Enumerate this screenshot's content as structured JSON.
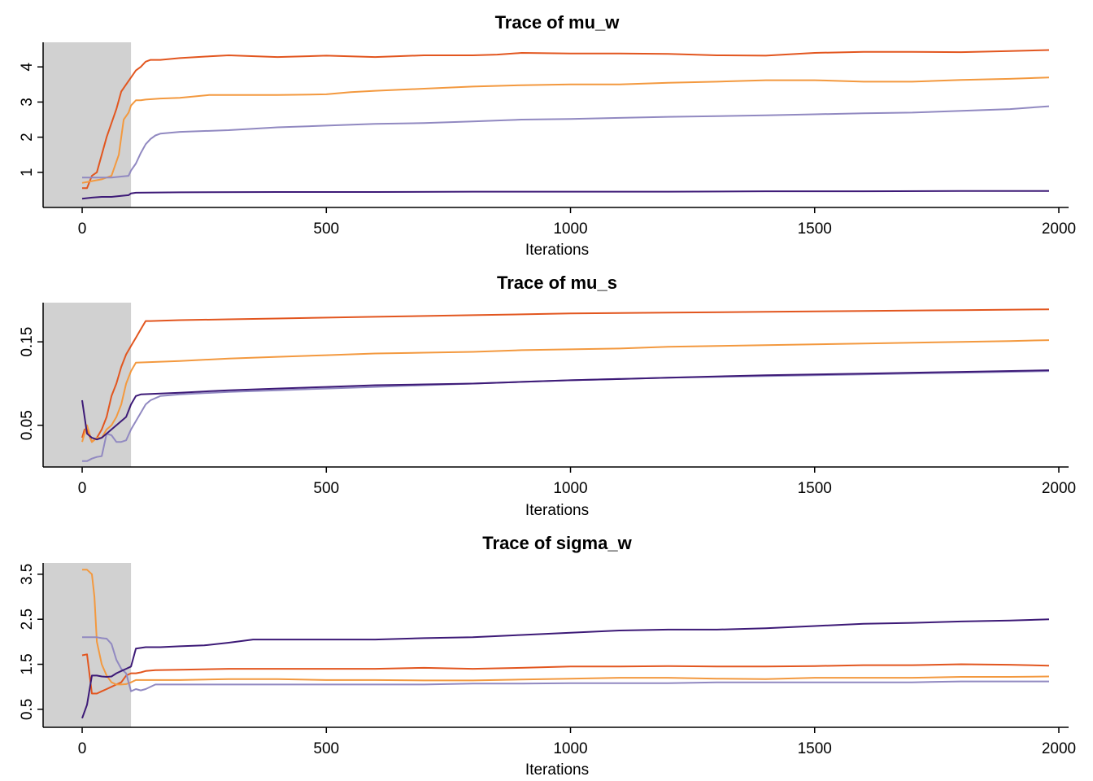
{
  "colors": {
    "chain1": "#e2561f",
    "chain2": "#f3993f",
    "chain3": "#9189c1",
    "chain4": "#3d1a77",
    "burnin": "#d1d1d1"
  },
  "chart_data": [
    {
      "type": "line",
      "title": "Trace of  mu_w",
      "xlabel": "Iterations",
      "ylabel": "",
      "xlim": [
        -80,
        2020
      ],
      "ylim": [
        0,
        4.7
      ],
      "xticks": [
        0,
        500,
        1000,
        1500,
        2000
      ],
      "yticks": [
        1,
        2,
        3,
        4
      ],
      "xtick_labels": [
        "0",
        "500",
        "1000",
        "1500",
        "2000"
      ],
      "ytick_labels": [
        "1",
        "2",
        "3",
        "4"
      ],
      "burnin": [
        -80,
        100
      ],
      "series": [
        {
          "color": "chain1",
          "x": [
            0,
            10,
            20,
            30,
            40,
            50,
            60,
            70,
            80,
            90,
            100,
            110,
            120,
            130,
            140,
            160,
            200,
            260,
            300,
            400,
            500,
            600,
            700,
            800,
            850,
            900,
            1000,
            1100,
            1200,
            1300,
            1400,
            1500,
            1600,
            1700,
            1800,
            1900,
            1980
          ],
          "values": [
            0.55,
            0.55,
            0.9,
            1.0,
            1.5,
            2.0,
            2.4,
            2.8,
            3.3,
            3.5,
            3.7,
            3.9,
            4.0,
            4.15,
            4.2,
            4.2,
            4.25,
            4.3,
            4.33,
            4.28,
            4.32,
            4.28,
            4.33,
            4.33,
            4.35,
            4.4,
            4.38,
            4.38,
            4.37,
            4.33,
            4.32,
            4.4,
            4.43,
            4.43,
            4.42,
            4.45,
            4.48
          ]
        },
        {
          "color": "chain2",
          "x": [
            0,
            20,
            40,
            60,
            75,
            85,
            95,
            100,
            110,
            120,
            130,
            160,
            200,
            260,
            300,
            400,
            500,
            550,
            600,
            700,
            800,
            900,
            1000,
            1100,
            1200,
            1300,
            1400,
            1500,
            1600,
            1700,
            1800,
            1900,
            1980
          ],
          "values": [
            0.7,
            0.75,
            0.8,
            0.9,
            1.5,
            2.5,
            2.7,
            2.9,
            3.05,
            3.05,
            3.07,
            3.1,
            3.12,
            3.2,
            3.2,
            3.2,
            3.22,
            3.28,
            3.32,
            3.38,
            3.44,
            3.48,
            3.5,
            3.5,
            3.55,
            3.58,
            3.62,
            3.62,
            3.58,
            3.58,
            3.63,
            3.66,
            3.7
          ]
        },
        {
          "color": "chain3",
          "x": [
            0,
            20,
            40,
            60,
            80,
            95,
            100,
            110,
            120,
            130,
            140,
            150,
            160,
            200,
            300,
            400,
            500,
            600,
            700,
            800,
            900,
            1000,
            1100,
            1200,
            1300,
            1400,
            1500,
            1600,
            1700,
            1800,
            1900,
            1980
          ],
          "values": [
            0.85,
            0.85,
            0.85,
            0.85,
            0.88,
            0.9,
            1.05,
            1.25,
            1.55,
            1.8,
            1.95,
            2.05,
            2.1,
            2.15,
            2.2,
            2.28,
            2.33,
            2.38,
            2.4,
            2.45,
            2.5,
            2.52,
            2.55,
            2.58,
            2.6,
            2.62,
            2.65,
            2.68,
            2.7,
            2.75,
            2.8,
            2.88
          ]
        },
        {
          "color": "chain4",
          "x": [
            0,
            20,
            40,
            60,
            80,
            95,
            100,
            110,
            200,
            400,
            600,
            800,
            1000,
            1200,
            1400,
            1600,
            1800,
            1980
          ],
          "values": [
            0.25,
            0.28,
            0.3,
            0.3,
            0.33,
            0.35,
            0.4,
            0.42,
            0.43,
            0.44,
            0.44,
            0.45,
            0.45,
            0.45,
            0.46,
            0.46,
            0.47,
            0.47
          ]
        }
      ]
    },
    {
      "type": "line",
      "title": "Trace of  mu_s",
      "xlabel": "Iterations",
      "ylabel": "",
      "xlim": [
        -80,
        2020
      ],
      "ylim": [
        0,
        0.197
      ],
      "xticks": [
        0,
        500,
        1000,
        1500,
        2000
      ],
      "yticks": [
        0.05,
        0.15
      ],
      "xtick_labels": [
        "0",
        "500",
        "1000",
        "1500",
        "2000"
      ],
      "ytick_labels": [
        "0.05",
        "0.15"
      ],
      "burnin": [
        -80,
        100
      ],
      "series": [
        {
          "color": "chain1",
          "x": [
            0,
            5,
            10,
            20,
            30,
            40,
            50,
            60,
            70,
            80,
            90,
            100,
            110,
            120,
            130,
            140,
            200,
            300,
            400,
            600,
            800,
            1000,
            1200,
            1400,
            1600,
            1800,
            1980
          ],
          "values": [
            0.035,
            0.045,
            0.045,
            0.03,
            0.035,
            0.045,
            0.06,
            0.085,
            0.1,
            0.12,
            0.135,
            0.145,
            0.155,
            0.165,
            0.175,
            0.175,
            0.176,
            0.177,
            0.178,
            0.18,
            0.182,
            0.184,
            0.185,
            0.186,
            0.187,
            0.188,
            0.189
          ]
        },
        {
          "color": "chain2",
          "x": [
            0,
            10,
            20,
            30,
            40,
            50,
            60,
            70,
            80,
            90,
            100,
            110,
            200,
            300,
            400,
            500,
            600,
            700,
            800,
            900,
            1000,
            1100,
            1200,
            1300,
            1400,
            1500,
            1600,
            1700,
            1800,
            1900,
            1980
          ],
          "values": [
            0.03,
            0.05,
            0.03,
            0.035,
            0.035,
            0.045,
            0.05,
            0.06,
            0.075,
            0.1,
            0.115,
            0.125,
            0.127,
            0.13,
            0.132,
            0.134,
            0.136,
            0.137,
            0.138,
            0.14,
            0.141,
            0.142,
            0.144,
            0.145,
            0.146,
            0.147,
            0.148,
            0.149,
            0.15,
            0.151,
            0.152
          ]
        },
        {
          "color": "chain3",
          "x": [
            0,
            10,
            20,
            30,
            40,
            50,
            60,
            70,
            80,
            90,
            100,
            110,
            120,
            130,
            140,
            160,
            200,
            300,
            400,
            500,
            600,
            700,
            800,
            900,
            1000,
            1200,
            1400,
            1600,
            1800,
            1980
          ],
          "values": [
            0.007,
            0.007,
            0.01,
            0.012,
            0.013,
            0.04,
            0.038,
            0.03,
            0.03,
            0.032,
            0.045,
            0.055,
            0.065,
            0.075,
            0.08,
            0.085,
            0.087,
            0.09,
            0.092,
            0.094,
            0.096,
            0.098,
            0.1,
            0.102,
            0.104,
            0.107,
            0.109,
            0.111,
            0.113,
            0.115
          ]
        },
        {
          "color": "chain4",
          "x": [
            0,
            10,
            20,
            30,
            40,
            50,
            60,
            70,
            80,
            90,
            100,
            110,
            120,
            160,
            200,
            300,
            400,
            500,
            600,
            700,
            800,
            900,
            1000,
            1200,
            1400,
            1600,
            1800,
            1980
          ],
          "values": [
            0.08,
            0.04,
            0.035,
            0.033,
            0.035,
            0.04,
            0.045,
            0.05,
            0.055,
            0.06,
            0.075,
            0.085,
            0.087,
            0.088,
            0.089,
            0.092,
            0.094,
            0.096,
            0.098,
            0.099,
            0.1,
            0.102,
            0.104,
            0.107,
            0.11,
            0.112,
            0.114,
            0.116
          ]
        }
      ]
    },
    {
      "type": "line",
      "title": "Trace of  sigma_w",
      "xlabel": "Iterations",
      "ylabel": "",
      "xlim": [
        -80,
        2020
      ],
      "ylim": [
        0.1,
        3.75
      ],
      "xticks": [
        0,
        500,
        1000,
        1500,
        2000
      ],
      "yticks": [
        0.5,
        1.5,
        2.5,
        3.5
      ],
      "xtick_labels": [
        "0",
        "500",
        "1000",
        "1500",
        "2000"
      ],
      "ytick_labels": [
        "0.5",
        "1.5",
        "2.5",
        "3.5"
      ],
      "burnin": [
        -80,
        100
      ],
      "series": [
        {
          "color": "chain1",
          "x": [
            0,
            10,
            20,
            30,
            40,
            50,
            60,
            70,
            80,
            90,
            100,
            110,
            120,
            130,
            150,
            200,
            300,
            400,
            500,
            600,
            700,
            800,
            900,
            1000,
            1100,
            1200,
            1300,
            1400,
            1500,
            1600,
            1700,
            1800,
            1900,
            1980
          ],
          "values": [
            1.7,
            1.72,
            0.85,
            0.85,
            0.9,
            0.95,
            1.0,
            1.05,
            1.1,
            1.25,
            1.3,
            1.3,
            1.32,
            1.35,
            1.37,
            1.38,
            1.4,
            1.4,
            1.4,
            1.4,
            1.42,
            1.4,
            1.42,
            1.45,
            1.45,
            1.46,
            1.45,
            1.45,
            1.46,
            1.48,
            1.48,
            1.5,
            1.49,
            1.47
          ]
        },
        {
          "color": "chain2",
          "x": [
            0,
            10,
            20,
            25,
            30,
            40,
            50,
            60,
            70,
            80,
            90,
            100,
            110,
            150,
            200,
            300,
            400,
            500,
            600,
            700,
            800,
            900,
            1000,
            1100,
            1200,
            1300,
            1400,
            1500,
            1600,
            1700,
            1800,
            1900,
            1980
          ],
          "values": [
            3.6,
            3.6,
            3.5,
            3.0,
            2.0,
            1.5,
            1.25,
            1.1,
            1.05,
            1.05,
            1.06,
            1.1,
            1.15,
            1.15,
            1.15,
            1.17,
            1.17,
            1.15,
            1.15,
            1.14,
            1.14,
            1.16,
            1.18,
            1.2,
            1.2,
            1.18,
            1.17,
            1.2,
            1.2,
            1.2,
            1.22,
            1.22,
            1.23
          ]
        },
        {
          "color": "chain3",
          "x": [
            0,
            10,
            20,
            30,
            40,
            50,
            60,
            70,
            80,
            90,
            100,
            110,
            120,
            130,
            150,
            200,
            300,
            400,
            500,
            600,
            700,
            800,
            900,
            1000,
            1100,
            1200,
            1300,
            1400,
            1500,
            1600,
            1700,
            1800,
            1900,
            1980
          ],
          "values": [
            2.1,
            2.1,
            2.1,
            2.1,
            2.08,
            2.07,
            1.95,
            1.6,
            1.4,
            1.3,
            0.9,
            0.95,
            0.92,
            0.95,
            1.05,
            1.05,
            1.05,
            1.05,
            1.05,
            1.05,
            1.05,
            1.07,
            1.07,
            1.08,
            1.08,
            1.08,
            1.1,
            1.1,
            1.1,
            1.1,
            1.1,
            1.12,
            1.12,
            1.12
          ]
        },
        {
          "color": "chain4",
          "x": [
            0,
            10,
            20,
            30,
            40,
            50,
            60,
            70,
            80,
            90,
            100,
            110,
            130,
            160,
            200,
            250,
            300,
            350,
            400,
            500,
            600,
            700,
            800,
            900,
            1000,
            1100,
            1200,
            1300,
            1400,
            1500,
            1600,
            1700,
            1800,
            1900,
            1980
          ],
          "values": [
            0.3,
            0.6,
            1.25,
            1.25,
            1.23,
            1.22,
            1.23,
            1.3,
            1.35,
            1.4,
            1.45,
            1.85,
            1.88,
            1.88,
            1.9,
            1.92,
            1.98,
            2.05,
            2.05,
            2.05,
            2.05,
            2.08,
            2.1,
            2.15,
            2.2,
            2.25,
            2.27,
            2.27,
            2.3,
            2.35,
            2.4,
            2.42,
            2.45,
            2.47,
            2.5
          ]
        }
      ]
    }
  ]
}
